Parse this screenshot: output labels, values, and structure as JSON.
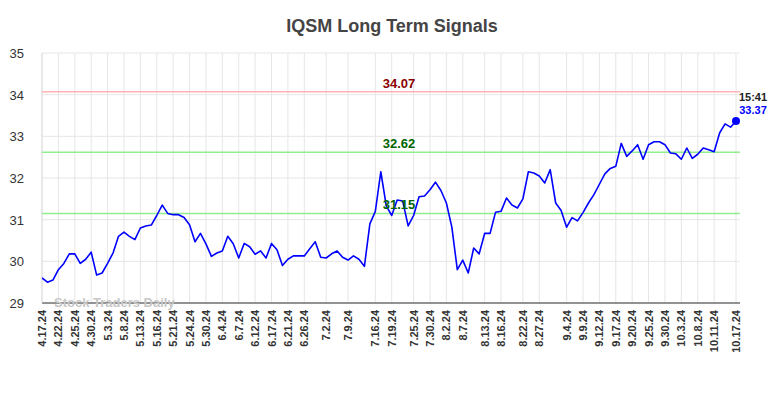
{
  "chart_data": {
    "type": "line",
    "title": "IQSM Long Term Signals",
    "watermark": "Stock Traders Daily",
    "categories": [
      "4.17.24",
      null,
      null,
      "4.22.24",
      null,
      null,
      "4.25.24",
      null,
      null,
      "4.30.24",
      null,
      null,
      "5.3.24",
      null,
      null,
      "5.8.24",
      null,
      null,
      "5.13.24",
      null,
      null,
      "5.16.24",
      null,
      null,
      "5.21.24",
      null,
      null,
      "5.24.24",
      null,
      null,
      "5.30.24",
      null,
      null,
      "6.4.24",
      null,
      null,
      "6.7.24",
      null,
      null,
      "6.12.24",
      null,
      null,
      "6.17.24",
      null,
      null,
      "6.21.24",
      null,
      null,
      "6.26.24",
      null,
      null,
      null,
      "7.2.24",
      null,
      null,
      null,
      "7.9.24",
      null,
      null,
      null,
      null,
      "7.16.24",
      null,
      null,
      "7.19.24",
      null,
      null,
      null,
      "7.25.24",
      null,
      null,
      "7.30.24",
      null,
      null,
      "8.2.24",
      null,
      null,
      "8.7.24",
      null,
      null,
      null,
      "8.13.24",
      null,
      null,
      "8.16.24",
      null,
      null,
      null,
      "8.22.24",
      null,
      null,
      "8.27.24",
      null,
      null,
      null,
      null,
      "9.4.24",
      null,
      null,
      "9.9.24",
      null,
      null,
      "9.12.24",
      null,
      null,
      "9.17.24",
      null,
      null,
      "9.20.24",
      null,
      null,
      "9.25.24",
      null,
      null,
      "9.30.24",
      null,
      null,
      "10.3.24",
      null,
      null,
      "10.8.24",
      null,
      null,
      "10.11.24",
      null,
      null,
      null,
      "10.17.24"
    ],
    "series": [
      {
        "color": "#0000ff",
        "values": [
          29.6,
          29.5,
          29.55,
          29.8,
          29.95,
          30.18,
          30.18,
          29.95,
          30.05,
          30.22,
          29.67,
          29.72,
          29.95,
          30.2,
          30.6,
          30.7,
          30.6,
          30.52,
          30.8,
          30.85,
          30.87,
          31.1,
          31.35,
          31.15,
          31.12,
          31.12,
          31.05,
          30.88,
          30.47,
          30.67,
          30.42,
          30.12,
          30.2,
          30.25,
          30.6,
          30.42,
          30.08,
          30.43,
          30.35,
          30.17,
          30.25,
          30.08,
          30.43,
          30.28,
          29.9,
          30.05,
          30.13,
          30.13,
          30.13,
          30.3,
          30.47,
          30.1,
          30.08,
          30.18,
          30.25,
          30.1,
          30.03,
          30.13,
          30.05,
          29.88,
          30.9,
          31.2,
          32.15,
          31.33,
          31.1,
          31.47,
          31.45,
          30.85,
          31.1,
          31.55,
          31.57,
          31.72,
          31.9,
          31.7,
          31.4,
          30.82,
          29.8,
          30.03,
          29.72,
          30.32,
          30.18,
          30.67,
          30.67,
          31.18,
          31.2,
          31.52,
          31.35,
          31.28,
          31.5,
          32.15,
          32.12,
          32.05,
          31.88,
          32.2,
          31.4,
          31.22,
          30.82,
          31.05,
          30.97,
          31.17,
          31.4,
          31.6,
          31.85,
          32.1,
          32.23,
          32.28,
          32.83,
          32.52,
          32.65,
          32.8,
          32.45,
          32.8,
          32.87,
          32.87,
          32.8,
          32.6,
          32.58,
          32.45,
          32.72,
          32.47,
          32.57,
          32.72,
          32.68,
          32.63,
          33.08,
          33.3,
          33.22,
          33.37
        ]
      }
    ],
    "last_point_time": "15:41",
    "reference_lines": [
      {
        "value": 34.07,
        "label": "34.07",
        "color": "#ffb3b3"
      },
      {
        "value": 32.62,
        "label": "32.62",
        "color": "#90ee90"
      },
      {
        "value": 31.15,
        "label": "31.15",
        "color": "#90ee90"
      }
    ],
    "ylim": [
      29,
      35
    ],
    "yticks": [
      29,
      30,
      31,
      32,
      33,
      34,
      35
    ],
    "grid": true
  }
}
